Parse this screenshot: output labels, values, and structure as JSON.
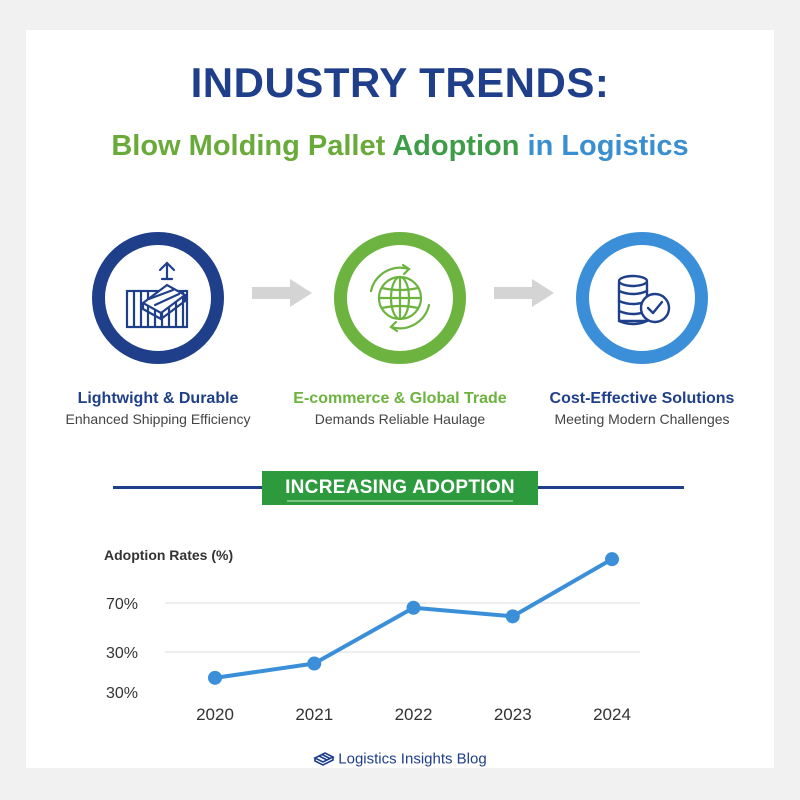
{
  "header": {
    "title": "INDUSTRY TRENDS:",
    "subtitle_part1": "Blow Molding Pallet ",
    "subtitle_part2": "Adoption",
    "subtitle_part3": " in Logistics"
  },
  "features": [
    {
      "title": "Lightwight & Durable",
      "subtitle": "Enhanced Shipping Efficiency",
      "color": "#1f3f8a",
      "icon": "container-pallet-icon"
    },
    {
      "title": "E-commerce & Global Trade",
      "subtitle": "Demands Reliable Haulage",
      "color": "#6cb33f",
      "icon": "globe-cycle-icon"
    },
    {
      "title": "Cost-Effective Solutions",
      "subtitle": "Meeting Modern Challenges",
      "color": "#3a8fd8",
      "icon": "coins-check-icon"
    }
  ],
  "banner": {
    "label": "INCREASING ADOPTION"
  },
  "chart_data": {
    "type": "line",
    "ylabel": "Adoption Rates (%)",
    "categories": [
      "2020",
      "2021",
      "2022",
      "2023",
      "2024"
    ],
    "y_tick_labels": [
      "70%",
      "30%",
      "30%"
    ],
    "values": [
      12,
      22,
      61,
      55,
      95
    ],
    "ylim": [
      0,
      100
    ],
    "grid": true,
    "color": "#3a8fd8"
  },
  "footer": {
    "text": "Logistics Insights Blog",
    "icon": "pallet-logo-icon"
  }
}
